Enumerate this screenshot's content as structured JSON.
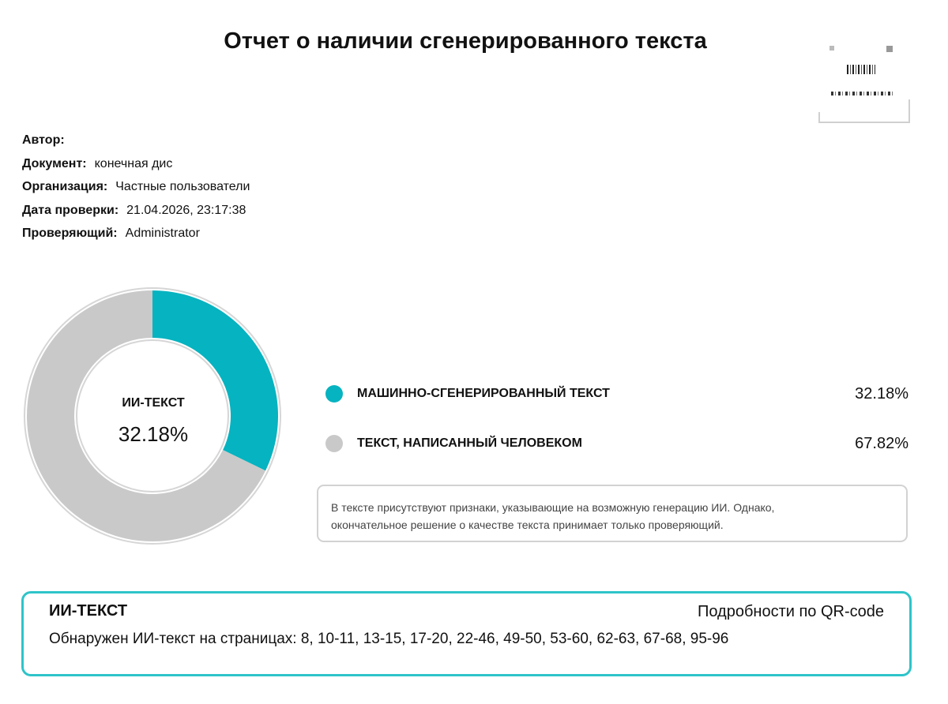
{
  "report": {
    "title": "Отчет о наличии сгенерированного текста"
  },
  "meta": [
    {
      "label": "Автор:",
      "value": ""
    },
    {
      "label": "Документ:",
      "value": "конечная дис"
    },
    {
      "label": "Организация:",
      "value": "Частные пользователи"
    },
    {
      "label": "Дата проверки:",
      "value": "21.04.2026, 23:17:38"
    },
    {
      "label": "Проверяющий:",
      "value": "Administrator"
    }
  ],
  "chart_data": {
    "type": "pie",
    "center_label": "ИИ-ТЕКСТ",
    "center_value": "32.18%",
    "slices": [
      {
        "name": "МАШИННО-СГЕНЕРИРОВАННЫЙ ТЕКСТ",
        "value": 32.18,
        "label": "32.18%",
        "color": "#06b3c0"
      },
      {
        "name": "ТЕКСТ, НАПИСАННЫЙ ЧЕЛОВЕКОМ",
        "value": 67.82,
        "label": "67.82%",
        "color": "#c9c9c9"
      }
    ]
  },
  "note": {
    "line1": "В тексте присутствуют признаки, указывающие на возможную генерацию ИИ. Однако,",
    "line2": "окончательное решение о качестве текста принимает только проверяющий."
  },
  "ai_box": {
    "title": "ИИ-ТЕКСТ",
    "qr_link": "Подробности по QR-code",
    "pages": "Обнаружен ИИ-текст на страницах: 8, 10-11, 13-15, 17-20, 22-46, 49-50, 53-60, 62-63, 67-68, 95-96"
  },
  "colors": {
    "accent": "#06b3c0",
    "human": "#c9c9c9",
    "box_border": "#2ec4c9"
  }
}
